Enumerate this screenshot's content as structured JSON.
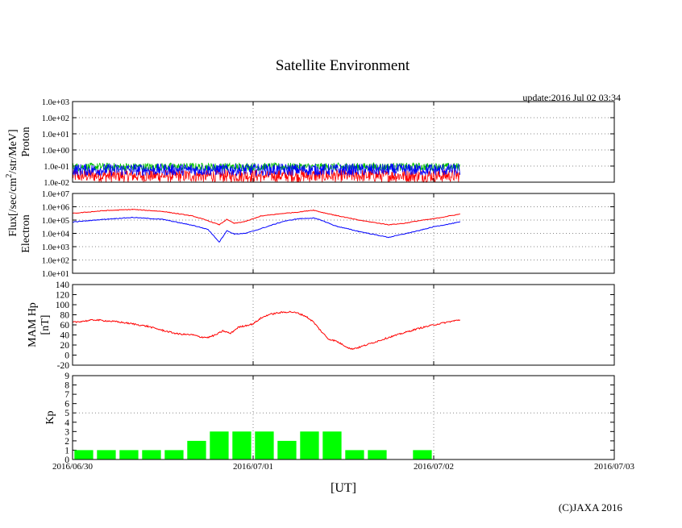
{
  "chart_data": {
    "type": "multi-panel",
    "title": "Satellite Environment",
    "update_label": "update:2016 Jul 02 03:34",
    "x_axis": {
      "label": "[UT]",
      "start": 0,
      "end": 72,
      "unit": "hours since 2016/06/30 00:00",
      "tick_positions": [
        0,
        24,
        48,
        72
      ],
      "tick_labels": [
        "2016/06/30",
        "2016/07/01",
        "2016/07/02",
        "2016/07/03"
      ],
      "data_end": 51.5
    },
    "shared_label_line1": "Flux[/sec/cm",
    "shared_label_sup": "2",
    "shared_label_line2": "/str/MeV]",
    "copyright": "(C)JAXA 2016",
    "panels": [
      {
        "id": "proton",
        "ylabel": "Proton",
        "scale": "log",
        "ylim_exp": [
          -2,
          3
        ],
        "tick_labels": [
          "1.0e-02",
          "1.0e-01",
          "1.0e+00",
          "1.0e+01",
          "1.0e+02",
          "1.0e+03"
        ],
        "grid_exps": [
          -1,
          0,
          1,
          2
        ],
        "series": [
          {
            "name": "proton-high",
            "color": "#ff0000",
            "band_exp": [
              -2.0,
              -1.2
            ]
          },
          {
            "name": "proton-mid",
            "color": "#00c000",
            "band_exp": [
              -1.3,
              -0.8
            ]
          },
          {
            "name": "proton-low",
            "color": "#0000ff",
            "band_exp": [
              -1.6,
              -0.85
            ]
          }
        ]
      },
      {
        "id": "electron",
        "ylabel": "Electron",
        "scale": "log",
        "ylim_exp": [
          1,
          7
        ],
        "tick_labels": [
          "1.0e+01",
          "1.0e+02",
          "1.0e+03",
          "1.0e+04",
          "1.0e+05",
          "1.0e+06",
          "1.0e+07"
        ],
        "grid_exps": [
          2,
          3,
          4,
          5,
          6
        ],
        "series": [
          {
            "name": "electron-low",
            "color": "#ff0000",
            "x": [
              0,
              4,
              8,
              12,
              16,
              18,
              19.5,
              20.5,
              21.5,
              23,
              25,
              28,
              30,
              32,
              33,
              35,
              38,
              42,
              44,
              46,
              48,
              51.5
            ],
            "y_exp": [
              5.5,
              5.7,
              5.8,
              5.65,
              5.3,
              4.95,
              4.65,
              5.05,
              4.75,
              4.9,
              5.3,
              5.5,
              5.6,
              5.75,
              5.6,
              5.35,
              5.0,
              4.65,
              4.75,
              4.95,
              5.1,
              5.45
            ]
          },
          {
            "name": "electron-high",
            "color": "#0000ff",
            "x": [
              0,
              4,
              8,
              12,
              16,
              18,
              19.5,
              20.5,
              21.5,
              23,
              25,
              28,
              30,
              32,
              33,
              35,
              38,
              42,
              44,
              46,
              48,
              51.5
            ],
            "y_exp": [
              4.85,
              5.05,
              5.2,
              5.05,
              4.6,
              4.3,
              3.35,
              4.2,
              3.95,
              4.0,
              4.35,
              4.9,
              5.1,
              5.15,
              5.0,
              4.55,
              4.15,
              3.7,
              3.95,
              4.2,
              4.5,
              4.85
            ]
          }
        ]
      },
      {
        "id": "mam-hp",
        "ylabel_line1": "MAM Hp",
        "ylabel_line2": "[nT]",
        "scale": "linear",
        "ylim": [
          -20,
          140
        ],
        "ticks": [
          -20,
          0,
          20,
          40,
          60,
          80,
          100,
          120,
          140
        ],
        "series": [
          {
            "name": "hp",
            "color": "#ff0000",
            "x": [
              0,
              3,
              6,
              8,
              10,
              12,
              14,
              16,
              17,
              18,
              19,
              20,
              21,
              22,
              24,
              25,
              26,
              27,
              28,
              29,
              30,
              31,
              32,
              33,
              34,
              35,
              36,
              37,
              38,
              40,
              42,
              44,
              46,
              48,
              50,
              51.5
            ],
            "y": [
              65,
              70,
              66,
              62,
              57,
              49,
              42,
              40,
              36,
              35,
              40,
              48,
              43,
              55,
              62,
              73,
              80,
              83,
              85,
              86,
              83,
              77,
              66,
              48,
              32,
              28,
              20,
              12,
              15,
              25,
              35,
              44,
              53,
              60,
              66,
              70
            ]
          }
        ]
      },
      {
        "id": "kp",
        "ylabel": "Kp",
        "scale": "linear",
        "ylim": [
          0,
          9
        ],
        "ticks": [
          0,
          1,
          2,
          3,
          4,
          5,
          6,
          7,
          8,
          9
        ],
        "grid_values": [
          5
        ],
        "bar_color": "#00ff00",
        "bar_hours": 3,
        "bar_starts": [
          0,
          3,
          6,
          9,
          12,
          15,
          18,
          21,
          24,
          27,
          30,
          33,
          36,
          39,
          42,
          45
        ],
        "values": [
          1,
          1,
          1,
          1,
          1,
          2,
          3,
          3,
          3,
          2,
          3,
          3,
          1,
          1,
          0,
          1
        ]
      }
    ]
  }
}
